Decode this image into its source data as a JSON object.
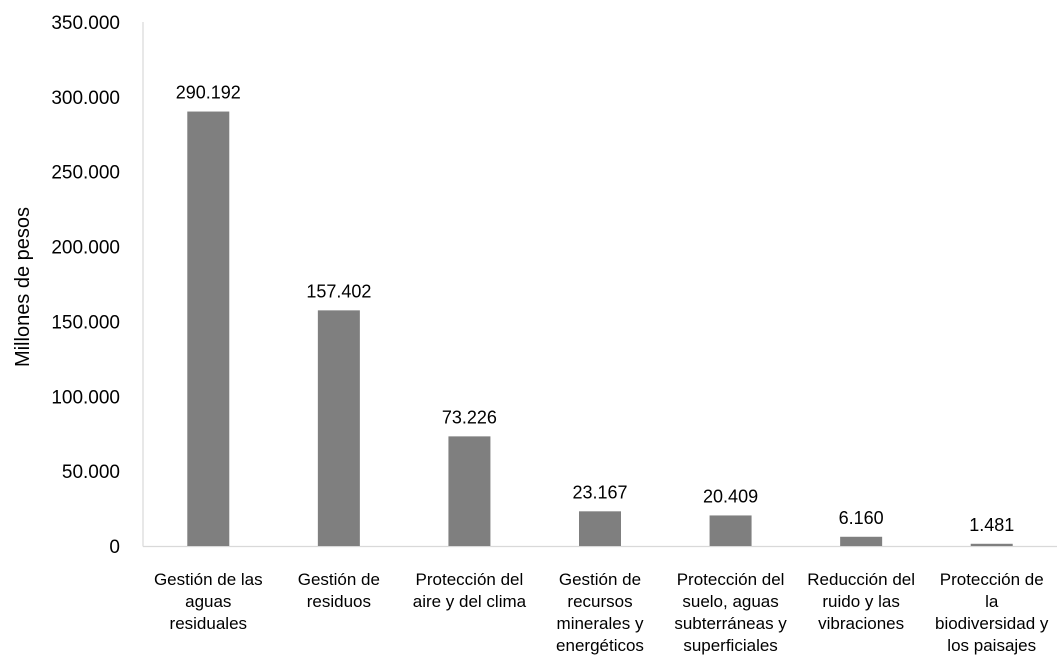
{
  "chart_data": {
    "type": "bar",
    "title": "",
    "xlabel": "",
    "ylabel": "Millones de pesos",
    "ylim": [
      0,
      350000
    ],
    "y_ticks": [
      0,
      50000,
      100000,
      150000,
      200000,
      250000,
      300000,
      350000
    ],
    "y_tick_labels": [
      "0",
      "50.000",
      "100.000",
      "150.000",
      "200.000",
      "250.000",
      "300.000",
      "350.000"
    ],
    "grid": false,
    "legend": "none",
    "bar_color": "#7f7f7f",
    "categories": [
      [
        "Gestión de las",
        "aguas",
        "residuales"
      ],
      [
        "Gestión de",
        "residuos"
      ],
      [
        "Protección del",
        "aire y del clima"
      ],
      [
        "Gestión de",
        "recursos",
        "minerales y",
        "energéticos"
      ],
      [
        "Protección del",
        "suelo, aguas",
        "subterráneas y",
        "superficiales"
      ],
      [
        "Reducción del",
        "ruido y las",
        "vibraciones"
      ],
      [
        "Protección de",
        "la",
        "biodiversidad y",
        "los paisajes"
      ]
    ],
    "values": [
      290192,
      157402,
      73226,
      23167,
      20409,
      6160,
      1481
    ],
    "data_labels": [
      "290.192",
      "157.402",
      "73.226",
      "23.167",
      "20.409",
      "6.160",
      "1.481"
    ]
  }
}
